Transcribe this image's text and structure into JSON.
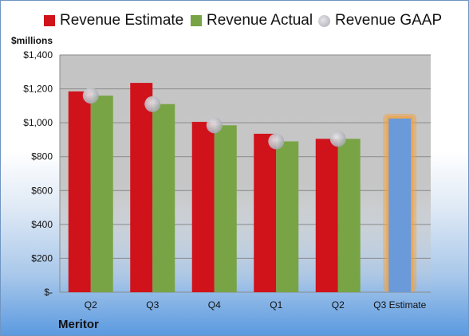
{
  "legend": {
    "estimate": "Revenue Estimate",
    "actual": "Revenue Actual",
    "gaap": "Revenue GAAP"
  },
  "units_label": "$millions",
  "company": "Meritor",
  "colors": {
    "estimate": "#d0121b",
    "actual": "#78a445",
    "gaap": "#a9aab2",
    "projected": "#6a9ad9",
    "projected_glow": "#f5a03a",
    "plot_bg": "#c4c4c4"
  },
  "chart_data": {
    "type": "bar",
    "title": "",
    "ylabel": "$millions",
    "ylim": [
      0,
      1400
    ],
    "y_ticks": [
      0,
      200,
      400,
      600,
      800,
      1000,
      1200,
      1400
    ],
    "y_tick_labels": [
      "$-",
      "$200",
      "$400",
      "$600",
      "$800",
      "$1,000",
      "$1,200",
      "$1,400"
    ],
    "categories": [
      "Q2",
      "Q3",
      "Q4",
      "Q1",
      "Q2",
      "Q3 Estimate"
    ],
    "series": [
      {
        "name": "Revenue Estimate",
        "values": [
          1185,
          1235,
          1005,
          935,
          905,
          null
        ]
      },
      {
        "name": "Revenue Actual",
        "values": [
          1160,
          1110,
          985,
          890,
          905,
          null
        ]
      },
      {
        "name": "Revenue GAAP",
        "type": "scatter",
        "values": [
          1160,
          1110,
          985,
          890,
          905,
          null
        ]
      },
      {
        "name": "Q3 Estimate",
        "values": [
          null,
          null,
          null,
          null,
          null,
          1025
        ]
      }
    ],
    "grid": true,
    "legend_position": "top"
  }
}
